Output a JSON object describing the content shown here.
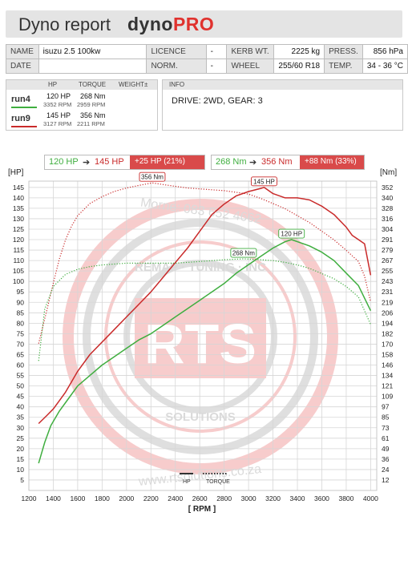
{
  "header": {
    "title": "Dyno report",
    "brand_dyno": "dyno",
    "brand_pro": "PRO"
  },
  "info_table": {
    "name_label": "NAME",
    "name_value": "isuzu 2.5 100kw",
    "date_label": "DATE",
    "date_value": "",
    "licence_label": "LICENCE",
    "licence_value": "-",
    "norm_label": "NORM.",
    "norm_value": "-",
    "kerb_label": "KERB WT.",
    "kerb_value": "2225 kg",
    "wheel_label": "WHEEL",
    "wheel_value": "255/60 R18",
    "press_label": "PRESS.",
    "press_value": "856 hPa",
    "temp_label": "TEMP.",
    "temp_value": "34 - 36 °C"
  },
  "runs_panel": {
    "col_hp": "HP",
    "col_torque": "TORQUE",
    "col_weight": "WEIGHT±",
    "runs": [
      {
        "name": "run4",
        "color": "#3fae3f",
        "hp": "120 HP",
        "hp_rpm": "3352 RPM",
        "nm": "268 Nm",
        "nm_rpm": "2959 RPM"
      },
      {
        "name": "run9",
        "color": "#c92a2a",
        "hp": "145 HP",
        "hp_rpm": "3127 RPM",
        "nm": "356 Nm",
        "nm_rpm": "2211 RPM"
      }
    ]
  },
  "info_panel": {
    "label": "INFO",
    "text": "DRIVE: 2WD,  GEAR: 3"
  },
  "comparison": {
    "hp_from": "120 HP",
    "arrow": "➔",
    "hp_to": "145 HP",
    "hp_delta": "+25 HP  (21%)",
    "nm_from": "268 Nm",
    "nm_to": "356 Nm",
    "nm_delta": "+88 Nm  (33%)"
  },
  "colors": {
    "run4": "#3fae3f",
    "run9": "#c92a2a",
    "delta_bg": "#d94a4a",
    "watermark": "#e85a5a"
  },
  "watermark": {
    "logo_text": "RTS",
    "top_text": "REMAP · TUNING · INC",
    "bottom_text": "SOLUTIONS",
    "phone": "Morne: 083 652 4662",
    "web": "www.rtsolutions.co.za"
  },
  "chart_data": {
    "type": "line",
    "xlabel": "[ RPM ]",
    "ylabel_left": "[HP]",
    "ylabel_right": "[Nm]",
    "x_ticks": [
      1200,
      1400,
      1600,
      1800,
      2000,
      2200,
      2400,
      2600,
      2800,
      3000,
      3200,
      3400,
      3600,
      3800,
      4000
    ],
    "y_left_ticks": [
      5,
      10,
      15,
      20,
      25,
      30,
      35,
      40,
      45,
      50,
      55,
      60,
      65,
      70,
      75,
      80,
      85,
      90,
      95,
      100,
      105,
      110,
      115,
      120,
      125,
      130,
      135,
      140,
      145
    ],
    "y_right_ticks": [
      12,
      24,
      36,
      49,
      61,
      73,
      85,
      97,
      109,
      121,
      134,
      146,
      158,
      170,
      182,
      194,
      206,
      219,
      231,
      243,
      255,
      267,
      279,
      291,
      304,
      316,
      328,
      340,
      352
    ],
    "xlim": [
      1200,
      4050
    ],
    "ylim_left": [
      0,
      148
    ],
    "ylim_right": [
      0,
      358
    ],
    "legend": [
      "HP",
      "TORQUE"
    ],
    "grid": true,
    "series": [
      {
        "name": "run9",
        "metric": "HP",
        "axis": "left",
        "style": "solid",
        "color": "#c92a2a",
        "x": [
          1280,
          1350,
          1400,
          1450,
          1500,
          1550,
          1600,
          1700,
          1800,
          1900,
          2000,
          2100,
          2200,
          2300,
          2400,
          2500,
          2600,
          2700,
          2800,
          2900,
          3000,
          3100,
          3127,
          3200,
          3300,
          3400,
          3500,
          3600,
          3700,
          3800,
          3850,
          3900,
          3950,
          4000
        ],
        "y": [
          32,
          36,
          39,
          43,
          47,
          52,
          57,
          65,
          71,
          77,
          83,
          89,
          95,
          102,
          109,
          116,
          124,
          132,
          137,
          141,
          143,
          144.5,
          145,
          142,
          140,
          140,
          139,
          136,
          132,
          126,
          122,
          120,
          118,
          103
        ]
      },
      {
        "name": "run4",
        "metric": "HP",
        "axis": "left",
        "style": "solid",
        "color": "#3fae3f",
        "x": [
          1280,
          1330,
          1380,
          1450,
          1500,
          1550,
          1600,
          1700,
          1800,
          1900,
          2000,
          2100,
          2200,
          2300,
          2400,
          2500,
          2600,
          2700,
          2800,
          2900,
          3000,
          3100,
          3200,
          3300,
          3352,
          3400,
          3500,
          3600,
          3700,
          3800,
          3900,
          4000
        ],
        "y": [
          13,
          23,
          31,
          38,
          42,
          46,
          50,
          55,
          60,
          64,
          68,
          72,
          75,
          79,
          83,
          87,
          91,
          95,
          99,
          104,
          108,
          112,
          116,
          119,
          120,
          119,
          117,
          114,
          110,
          104,
          98,
          86
        ]
      },
      {
        "name": "run9",
        "metric": "TORQUE",
        "axis": "right",
        "style": "dotted",
        "color": "#c92a2a",
        "x": [
          1280,
          1350,
          1400,
          1450,
          1500,
          1550,
          1600,
          1700,
          1800,
          1900,
          2000,
          2100,
          2211,
          2300,
          2400,
          2500,
          2600,
          2700,
          2800,
          2900,
          3000,
          3100,
          3200,
          3300,
          3400,
          3500,
          3600,
          3700,
          3800,
          3900,
          3950,
          4000
        ],
        "y": [
          170,
          210,
          240,
          268,
          290,
          306,
          318,
          332,
          340,
          346,
          350,
          353,
          356,
          354,
          352,
          350,
          349,
          348,
          347,
          345,
          343,
          338,
          332,
          326,
          318,
          310,
          300,
          290,
          278,
          265,
          248,
          218
        ]
      },
      {
        "name": "run4",
        "metric": "TORQUE",
        "axis": "right",
        "style": "dotted",
        "color": "#3fae3f",
        "x": [
          1280,
          1330,
          1400,
          1500,
          1600,
          1700,
          1800,
          1900,
          2000,
          2100,
          2200,
          2300,
          2400,
          2500,
          2600,
          2700,
          2800,
          2959,
          3100,
          3200,
          3300,
          3400,
          3500,
          3600,
          3700,
          3800,
          3900,
          4000
        ],
        "y": [
          150,
          210,
          236,
          250,
          256,
          259,
          261,
          262,
          263,
          263,
          263,
          263,
          263,
          264,
          265,
          266,
          267,
          268,
          267,
          266,
          264,
          261,
          257,
          251,
          245,
          236,
          224,
          192
        ]
      }
    ],
    "annotations": [
      {
        "text": "145 HP",
        "series": "run9 HP",
        "x": 3127,
        "y": 145
      },
      {
        "text": "120 HP",
        "series": "run4 HP",
        "x": 3352,
        "y": 120
      },
      {
        "text": "356 Nm",
        "series": "run9 TORQUE",
        "x": 2211,
        "y": 356
      },
      {
        "text": "268 Nm",
        "series": "run4 TORQUE",
        "x": 2959,
        "y": 268
      }
    ]
  }
}
